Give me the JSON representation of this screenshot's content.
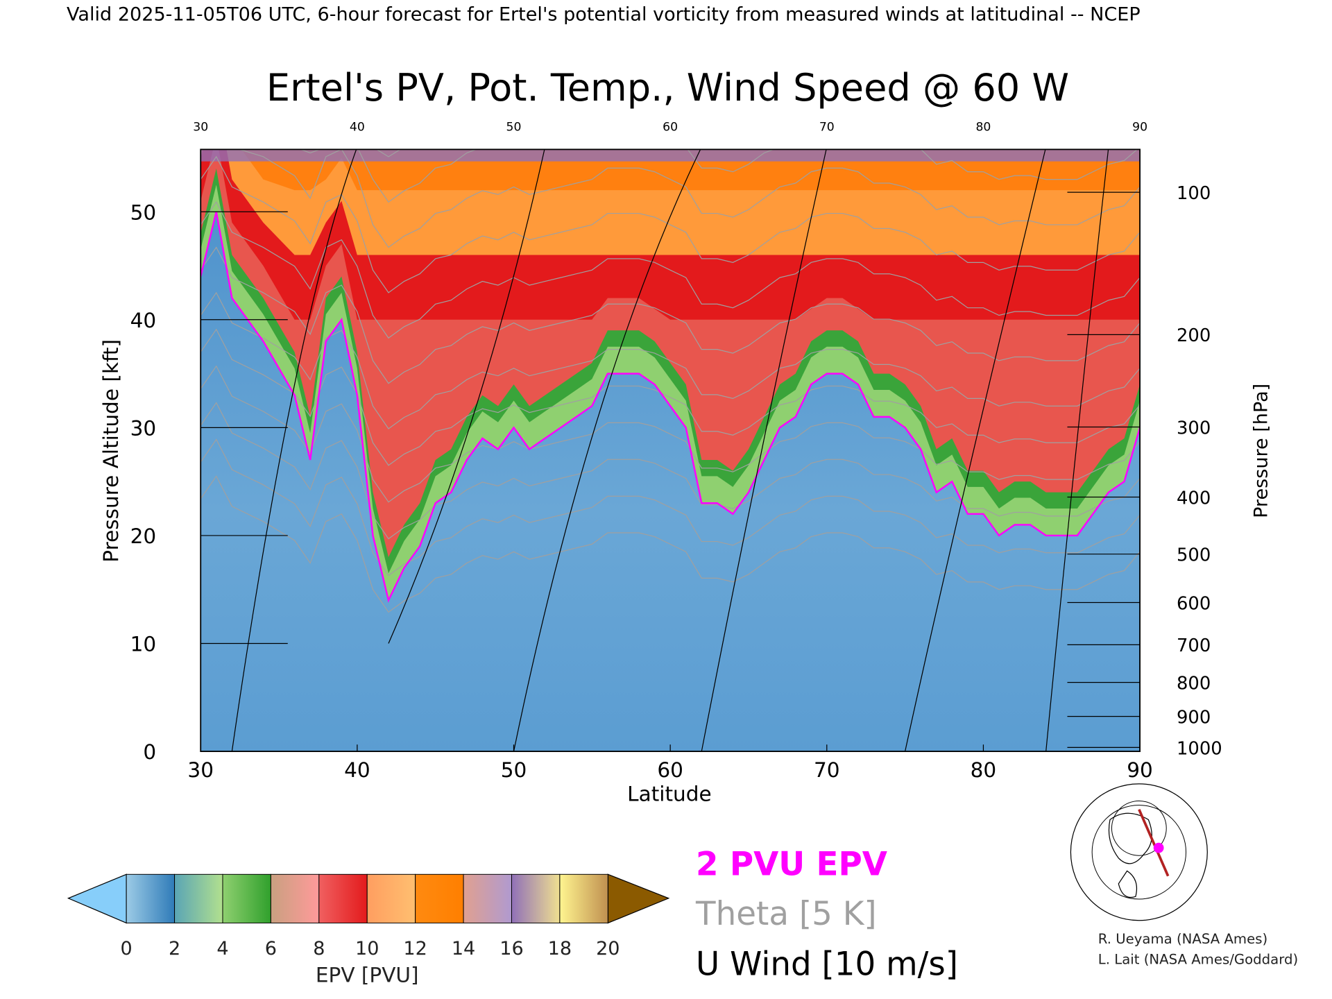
{
  "header": "Valid 2025-11-05T06 UTC, 6-hour forecast for Ertel's potential vorticity from measured winds at latitudinal -- NCEP",
  "chart_data": {
    "type": "heatmap",
    "title": "Ertel's PV, Pot. Temp., Wind Speed @ 60 W",
    "xlabel": "Latitude",
    "ylabel": "Pressure Altitude [kft]",
    "y2label": "Pressure [hPa]",
    "xlim": [
      30,
      90
    ],
    "ylim": [
      0,
      56
    ],
    "x_ticks": [
      "30",
      "40",
      "50",
      "60",
      "70",
      "80",
      "90"
    ],
    "top_x_ticks": [
      "30",
      "40",
      "50",
      "60",
      "70",
      "80",
      "90"
    ],
    "y_ticks": [
      "0",
      "10",
      "20",
      "30",
      "40",
      "50"
    ],
    "pressure_ticks": [
      "100",
      "200",
      "300",
      "400",
      "500",
      "600",
      "700",
      "800",
      "900",
      "1000"
    ],
    "tropopause_2pvu": {
      "latitude": [
        30,
        31,
        32,
        34,
        36,
        37,
        38,
        39,
        40,
        41,
        42,
        43,
        44,
        45,
        46,
        47,
        48,
        49,
        50,
        51,
        52,
        53,
        54,
        55,
        56,
        57,
        58,
        59,
        60,
        61,
        62,
        63,
        64,
        65,
        66,
        67,
        68,
        69,
        70,
        71,
        72,
        73,
        74,
        75,
        76,
        77,
        78,
        79,
        80,
        81,
        82,
        83,
        84,
        85,
        86,
        87,
        88,
        89,
        90
      ],
      "altitude_kft": [
        44,
        50,
        42,
        38,
        33,
        27,
        38,
        40,
        33,
        20,
        14,
        17,
        19,
        23,
        24,
        27,
        29,
        28,
        30,
        28,
        29,
        30,
        31,
        32,
        35,
        35,
        35,
        34,
        32,
        30,
        23,
        23,
        22,
        24,
        27,
        30,
        31,
        34,
        35,
        35,
        34,
        31,
        31,
        30,
        28,
        24,
        25,
        22,
        22,
        20,
        21,
        21,
        20,
        20,
        20,
        22,
        24,
        25,
        30
      ]
    },
    "colorbar": {
      "label": "EPV [PVU]",
      "ticks": [
        "0",
        "2",
        "4",
        "6",
        "8",
        "10",
        "12",
        "14",
        "16",
        "18",
        "20"
      ],
      "under_color": "#87cefa",
      "over_color": "#8b5a00",
      "segments": [
        [
          "#9ccbe6",
          "#2f7bb8"
        ],
        [
          "#5aa5b5",
          "#b2e08e"
        ],
        [
          "#8fd070",
          "#30a02c"
        ],
        [
          "#c9a080",
          "#ff9a9a"
        ],
        [
          "#f06060",
          "#e31a1c"
        ],
        [
          "#ff9e60",
          "#ffbf70"
        ],
        [
          "#ff8a10",
          "#ff7f00"
        ],
        [
          "#e0a090",
          "#b09ad0"
        ],
        [
          "#9070b8",
          "#f0e090"
        ],
        [
          "#fff590",
          "#c09050"
        ]
      ]
    },
    "legend": {
      "pv": "2 PVU EPV",
      "theta": "Theta [5 K]",
      "wind": "U Wind [10 m/s]"
    },
    "colors": {
      "pv_line": "#ff00ff",
      "theta_line": "#a0a0a0",
      "wind_line": "#000000"
    }
  },
  "credits": [
    "R. Ueyama (NASA Ames)",
    "L. Lait (NASA Ames/Goddard)"
  ]
}
